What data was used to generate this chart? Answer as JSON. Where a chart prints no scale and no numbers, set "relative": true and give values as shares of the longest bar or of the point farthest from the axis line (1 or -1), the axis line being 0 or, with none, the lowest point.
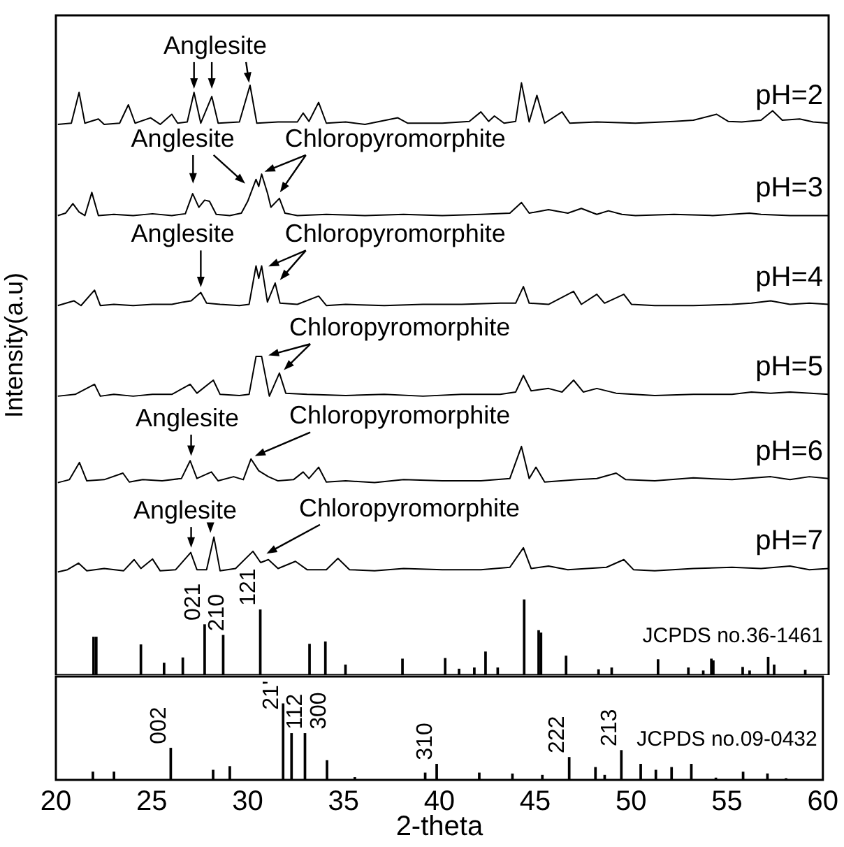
{
  "chart_data": [
    {
      "type": "line",
      "relative": true,
      "ylabel": "Intensity(a.u)",
      "xlim": [
        20,
        60
      ],
      "xticks": [
        20,
        25,
        30,
        35,
        40,
        45,
        50,
        55,
        60
      ],
      "tick_labels": false,
      "series": [
        {
          "name": "pH=2",
          "color": "#000000",
          "x": [
            20.1,
            20.8,
            21.2,
            21.5,
            22.2,
            22.5,
            23.3,
            23.75,
            24.1,
            24.9,
            25.4,
            26.0,
            26.3,
            26.8,
            27.15,
            27.5,
            28.07,
            28.4,
            29.5,
            30.05,
            30.4,
            31.5,
            32.5,
            32.8,
            33.1,
            33.6,
            34.0,
            35,
            36,
            37.7,
            38.2,
            40,
            41.4,
            42.0,
            42.4,
            42.7,
            43.2,
            43.8,
            44.1,
            44.5,
            44.9,
            45.3,
            46.2,
            46.6,
            48,
            50,
            52,
            53,
            54.2,
            54.8,
            55.5,
            56.5,
            57.1,
            57.6,
            58.5,
            59.2,
            60
          ],
          "values": [
            0.93,
            0.932,
            0.984,
            0.932,
            0.939,
            0.93,
            0.932,
            0.963,
            0.932,
            0.941,
            0.93,
            0.947,
            0.932,
            0.934,
            0.984,
            0.932,
            0.977,
            0.932,
            0.934,
            0.996,
            0.932,
            0.934,
            0.934,
            0.949,
            0.935,
            0.967,
            0.932,
            0.934,
            0.93,
            0.941,
            0.932,
            0.932,
            0.935,
            0.951,
            0.935,
            0.944,
            0.932,
            0.935,
            1.0,
            0.934,
            0.979,
            0.932,
            0.951,
            0.932,
            0.934,
            0.932,
            0.935,
            0.937,
            0.947,
            0.935,
            0.934,
            0.937,
            0.953,
            0.937,
            0.939,
            0.934,
            0.932
          ]
        },
        {
          "name": "pH=3",
          "color": "#000000",
          "x": [
            20.1,
            20.5,
            20.88,
            21.2,
            21.5,
            21.86,
            22.2,
            23,
            24,
            25,
            26,
            26.7,
            27.08,
            27.4,
            27.7,
            27.95,
            28.3,
            29,
            29.6,
            29.93,
            30.36,
            30.5,
            30.65,
            30.96,
            31.13,
            31.57,
            31.86,
            32.5,
            34,
            36,
            38,
            40,
            42,
            43.5,
            44.1,
            44.5,
            45.5,
            46.5,
            47.2,
            48,
            48.6,
            49.3,
            50,
            52,
            54,
            55.9,
            56.5,
            58,
            60
          ],
          "values": [
            0.776,
            0.78,
            0.796,
            0.782,
            0.776,
            0.815,
            0.776,
            0.778,
            0.776,
            0.779,
            0.776,
            0.779,
            0.813,
            0.79,
            0.802,
            0.8,
            0.778,
            0.776,
            0.78,
            0.8,
            0.837,
            0.825,
            0.846,
            0.813,
            0.79,
            0.805,
            0.78,
            0.776,
            0.778,
            0.776,
            0.778,
            0.776,
            0.778,
            0.78,
            0.798,
            0.78,
            0.786,
            0.78,
            0.788,
            0.778,
            0.784,
            0.778,
            0.776,
            0.778,
            0.776,
            0.78,
            0.778,
            0.776,
            0.776
          ]
        },
        {
          "name": "pH=4",
          "color": "#000000",
          "x": [
            20.1,
            20.93,
            21.3,
            22.0,
            22.3,
            23,
            24,
            25,
            26,
            26.6,
            27.0,
            27.5,
            27.8,
            28.5,
            29.5,
            30.0,
            30.36,
            30.5,
            30.65,
            30.95,
            31.35,
            31.6,
            32.5,
            33.6,
            34,
            35,
            37,
            39,
            41,
            43,
            43.8,
            44.2,
            44.5,
            45.5,
            46.8,
            47.2,
            48.0,
            48.4,
            49.4,
            49.8,
            51,
            53,
            55,
            56,
            57,
            58,
            59,
            60
          ],
          "values": [
            0.624,
            0.632,
            0.624,
            0.65,
            0.624,
            0.626,
            0.624,
            0.626,
            0.626,
            0.63,
            0.632,
            0.646,
            0.628,
            0.626,
            0.624,
            0.626,
            0.691,
            0.67,
            0.691,
            0.63,
            0.662,
            0.628,
            0.626,
            0.64,
            0.624,
            0.626,
            0.624,
            0.626,
            0.626,
            0.628,
            0.628,
            0.656,
            0.628,
            0.626,
            0.648,
            0.626,
            0.643,
            0.628,
            0.643,
            0.626,
            0.624,
            0.624,
            0.626,
            0.628,
            0.632,
            0.626,
            0.628,
            0.626
          ]
        },
        {
          "name": "pH=5",
          "color": "#000000",
          "x": [
            20.1,
            21,
            22.0,
            22.3,
            23,
            24,
            25,
            26,
            26.95,
            27.3,
            28.15,
            28.5,
            29.5,
            30.0,
            30.36,
            30.65,
            31.05,
            31.57,
            31.9,
            33,
            35,
            37,
            39,
            41,
            43,
            43.8,
            44.2,
            44.6,
            45.5,
            46.2,
            46.8,
            47.3,
            48,
            49,
            51,
            53,
            55,
            56,
            57,
            58,
            60
          ],
          "values": [
            0.471,
            0.474,
            0.491,
            0.471,
            0.474,
            0.471,
            0.474,
            0.474,
            0.491,
            0.476,
            0.498,
            0.474,
            0.472,
            0.474,
            0.538,
            0.538,
            0.471,
            0.51,
            0.476,
            0.474,
            0.472,
            0.474,
            0.471,
            0.474,
            0.474,
            0.478,
            0.506,
            0.48,
            0.484,
            0.478,
            0.498,
            0.478,
            0.484,
            0.476,
            0.472,
            0.474,
            0.474,
            0.478,
            0.476,
            0.478,
            0.474
          ]
        },
        {
          "name": "pH=6",
          "color": "#000000",
          "x": [
            20.1,
            20.7,
            21.22,
            21.6,
            22.5,
            23.47,
            23.8,
            24.5,
            25.5,
            26.5,
            26.95,
            27.3,
            28.05,
            28.4,
            29.2,
            29.7,
            30.1,
            30.5,
            31,
            31.5,
            32.3,
            32.8,
            33.1,
            33.6,
            34,
            35,
            36.5,
            38,
            40,
            42,
            43.5,
            44.1,
            44.5,
            44.85,
            45.3,
            47,
            48,
            49.0,
            49.5,
            51,
            53,
            55,
            57,
            58,
            59,
            60
          ],
          "values": [
            0.325,
            0.33,
            0.359,
            0.328,
            0.33,
            0.341,
            0.326,
            0.33,
            0.328,
            0.332,
            0.362,
            0.332,
            0.343,
            0.328,
            0.335,
            0.33,
            0.365,
            0.345,
            0.335,
            0.328,
            0.33,
            0.343,
            0.332,
            0.351,
            0.326,
            0.328,
            0.325,
            0.33,
            0.328,
            0.328,
            0.332,
            0.386,
            0.332,
            0.351,
            0.326,
            0.33,
            0.332,
            0.341,
            0.33,
            0.328,
            0.333,
            0.33,
            0.335,
            0.33,
            0.335,
            0.332
          ]
        },
        {
          "name": "pH=7",
          "color": "#000000",
          "x": [
            20.1,
            20.6,
            21.17,
            21.6,
            22.5,
            23.5,
            24.05,
            24.4,
            25.0,
            25.4,
            26.2,
            26.98,
            27.3,
            27.8,
            28.18,
            28.5,
            29.3,
            30.2,
            30.6,
            31.0,
            31.5,
            32.4,
            33,
            34.0,
            34.6,
            35.2,
            36.5,
            38,
            40,
            42,
            43.5,
            44.2,
            44.6,
            45.5,
            46.5,
            47.5,
            48.5,
            49.4,
            49.9,
            51,
            53,
            55,
            56.5,
            58,
            59,
            60
          ],
          "values": [
            0.174,
            0.178,
            0.189,
            0.176,
            0.18,
            0.176,
            0.195,
            0.18,
            0.196,
            0.176,
            0.178,
            0.207,
            0.178,
            0.178,
            0.233,
            0.176,
            0.18,
            0.209,
            0.19,
            0.195,
            0.18,
            0.192,
            0.178,
            0.178,
            0.197,
            0.178,
            0.176,
            0.18,
            0.178,
            0.178,
            0.182,
            0.215,
            0.18,
            0.184,
            0.178,
            0.18,
            0.182,
            0.195,
            0.178,
            0.176,
            0.18,
            0.182,
            0.18,
            0.184,
            0.178,
            0.18
          ]
        },
        {
          "name": "JCPDS no.36-1461",
          "type": "bar",
          "color": "#000000",
          "x": [
            21.95,
            22.09,
            24.4,
            25.6,
            26.57,
            27.7,
            28.66,
            30.58,
            33.13,
            33.95,
            34.99,
            37.94,
            40.15,
            40.87,
            41.66,
            42.24,
            42.87,
            44.24,
            44.99,
            45.11,
            46.41,
            48.09,
            48.77,
            51.17,
            52.74,
            53.51,
            53.93,
            54.03,
            55.55,
            55.91,
            56.87,
            57.18,
            58.79
          ],
          "values": [
            0.064,
            0.064,
            0.051,
            0.02,
            0.029,
            0.085,
            0.067,
            0.11,
            0.052,
            0.056,
            0.017,
            0.027,
            0.028,
            0.01,
            0.012,
            0.039,
            0.012,
            0.127,
            0.075,
            0.071,
            0.032,
            0.009,
            0.012,
            0.026,
            0.012,
            0.007,
            0.027,
            0.024,
            0.013,
            0.007,
            0.03,
            0.017,
            0.008
          ]
        }
      ],
      "annotations": [
        "Anglesite",
        "Anglesite",
        "Chloropyromorphite",
        "Anglesite",
        "Chloropyromorphite",
        "Chloropyromorphite",
        "Anglesite",
        "Chloropyromorphite",
        "Anglesite",
        "Chloropyromorphite",
        {
          "text": "021",
          "x": 27.7,
          "y": 0.085
        },
        {
          "text": "210",
          "x": 28.66,
          "y": 0.067
        },
        {
          "text": "121",
          "x": 30.58,
          "y": 0.11
        }
      ]
    },
    {
      "type": "bar",
      "relative": true,
      "xlabel": "2-theta",
      "xlim": [
        20,
        60
      ],
      "xticks": [
        20,
        25,
        30,
        35,
        40,
        45,
        50,
        55,
        60
      ],
      "tick_labels": "x",
      "series": [
        {
          "name": "JCPDS no.09-0432",
          "color": "#000000",
          "x": [
            21.93,
            23.03,
            25.99,
            28.2,
            29.07,
            31.85,
            32.29,
            32.99,
            34.14,
            35.59,
            39.26,
            39.86,
            42.08,
            43.81,
            45.37,
            46.77,
            48.14,
            48.62,
            49.49,
            50.5,
            51.29,
            52.11,
            53.14,
            54.42,
            55.84,
            57.11,
            58.08
          ],
          "values": [
            0.103,
            0.103,
            0.416,
            0.127,
            0.175,
            1.0,
            0.609,
            0.609,
            0.253,
            0.03,
            0.09,
            0.205,
            0.09,
            0.078,
            0.06,
            0.295,
            0.163,
            0.06,
            0.386,
            0.205,
            0.127,
            0.163,
            0.205,
            0.024,
            0.103,
            0.078,
            0.018
          ]
        }
      ],
      "annotations": [
        {
          "text": "002",
          "x": 25.99,
          "y": 0.416
        },
        {
          "text": "21'",
          "x": 31.85,
          "y": 1.0
        },
        {
          "text": "112",
          "x": 32.29,
          "y": 0.609
        },
        {
          "text": "300",
          "x": 32.99,
          "y": 0.609
        },
        {
          "text": "310",
          "x": 39.86,
          "y": 0.205
        },
        {
          "text": "222",
          "x": 46.77,
          "y": 0.295
        },
        {
          "text": "213",
          "x": 49.49,
          "y": 0.386
        }
      ]
    }
  ]
}
